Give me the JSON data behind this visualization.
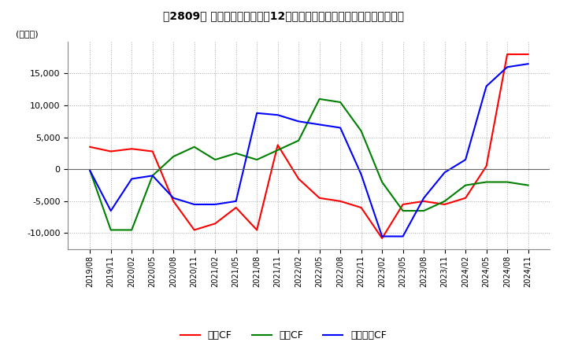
{
  "title": "【2809】 キャッシュフローの12か月移動合計の対前年同期増減額の推移",
  "ylabel": "(百万円)",
  "ylim": [
    -12500,
    20000
  ],
  "yticks": [
    -10000,
    -5000,
    0,
    5000,
    10000,
    15000
  ],
  "x_labels": [
    "2019/08",
    "2019/11",
    "2020/02",
    "2020/05",
    "2020/08",
    "2020/11",
    "2021/02",
    "2021/05",
    "2021/08",
    "2021/11",
    "2022/02",
    "2022/05",
    "2022/08",
    "2022/11",
    "2023/02",
    "2023/05",
    "2023/08",
    "2023/11",
    "2024/02",
    "2024/05",
    "2024/08",
    "2024/11"
  ],
  "operating_cf": [
    3500,
    2800,
    3200,
    2800,
    -5000,
    -9500,
    -8500,
    -6000,
    -9500,
    3800,
    -1500,
    -4500,
    -5000,
    -6000,
    -10800,
    -5500,
    -5000,
    -5500,
    -4500,
    500,
    18000,
    18000
  ],
  "investing_cf": [
    -200,
    -9500,
    -9500,
    -1000,
    2000,
    3500,
    1500,
    2500,
    1500,
    3000,
    4500,
    11000,
    10500,
    6000,
    -2000,
    -6500,
    -6500,
    -5000,
    -2500,
    -2000,
    -2000,
    -2500
  ],
  "free_cf": [
    -200,
    -6500,
    -1500,
    -1000,
    -4500,
    -5500,
    -5500,
    -5000,
    8800,
    8500,
    7500,
    7000,
    6500,
    -800,
    -10500,
    -10500,
    -4500,
    -500,
    1500,
    13000,
    16000,
    16500
  ],
  "operating_color": "#FF0000",
  "investing_color": "#008000",
  "free_color": "#0000FF",
  "background_color": "#FFFFFF",
  "grid_color": "#AAAAAA",
  "legend_labels": [
    "営業CF",
    "投資CF",
    "フリー－CF"
  ]
}
